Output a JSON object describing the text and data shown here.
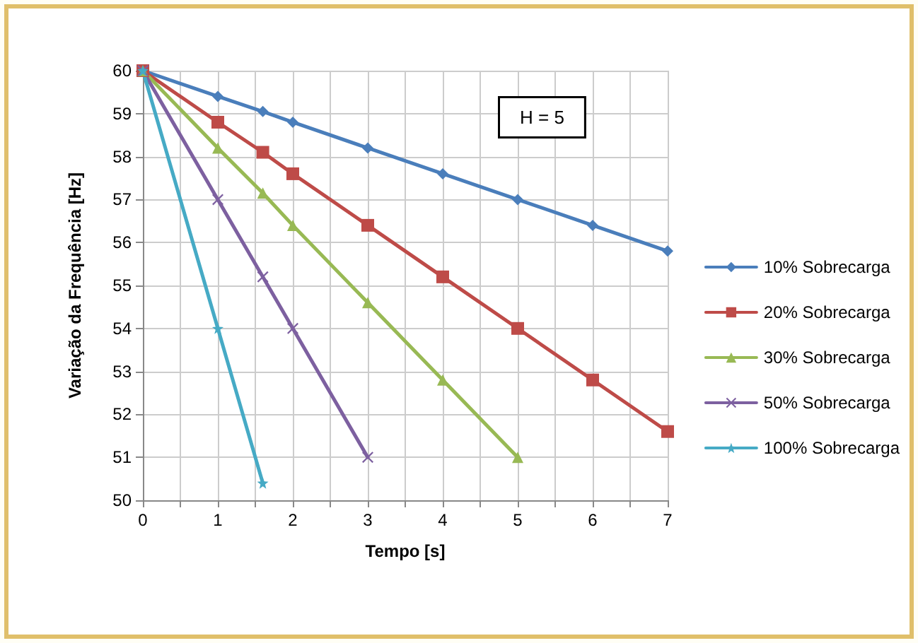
{
  "chart_data": {
    "type": "line",
    "xlabel": "Tempo [s]",
    "ylabel": "Variação da Frequência [Hz]",
    "annotations": [
      "H = 5"
    ],
    "xlim": [
      0,
      7
    ],
    "xticks": [
      0,
      {
        "value": 0.5,
        "label": null
      },
      1,
      {
        "value": 1.5,
        "label": null
      },
      2,
      {
        "value": 2.5,
        "label": null
      },
      3,
      {
        "value": 3.5,
        "label": null
      },
      4,
      {
        "value": 4.5,
        "label": null
      },
      5,
      {
        "value": 5.5,
        "label": null
      },
      6,
      {
        "value": 6.5,
        "label": null
      },
      7
    ],
    "ylim": [
      50,
      60
    ],
    "yticks": [
      50,
      51,
      52,
      53,
      54,
      55,
      56,
      57,
      58,
      59,
      60
    ],
    "grid": true,
    "legend": "right",
    "line_style": "solid",
    "series": [
      {
        "name": "10% Sobrecarga",
        "color": "#4a7ebb",
        "marker": "diamond",
        "x": [
          0,
          1,
          1.6,
          2,
          3,
          4,
          5,
          6,
          7
        ],
        "values": [
          60,
          59.4,
          59.05,
          58.8,
          58.2,
          57.6,
          57,
          56.4,
          55.8
        ]
      },
      {
        "name": "20% Sobrecarga",
        "color": "#be4b48",
        "marker": "square",
        "x": [
          0,
          1,
          1.6,
          2,
          3,
          4,
          5,
          6,
          7
        ],
        "values": [
          60,
          58.8,
          58.1,
          57.6,
          56.4,
          55.2,
          54,
          52.8,
          51.6
        ]
      },
      {
        "name": "30% Sobrecarga",
        "color": "#98b954",
        "marker": "triangle",
        "x": [
          0,
          1,
          1.6,
          2,
          3,
          4,
          5
        ],
        "values": [
          60,
          58.2,
          57.15,
          56.4,
          54.6,
          52.8,
          51
        ]
      },
      {
        "name": "50% Sobrecarga",
        "color": "#7d60a0",
        "marker": "cross",
        "x": [
          0,
          1,
          1.6,
          2,
          3
        ],
        "values": [
          60,
          57,
          55.2,
          54,
          51
        ]
      },
      {
        "name": "100% Sobrecarga",
        "color": "#46aac5",
        "marker": "star",
        "x": [
          0,
          1,
          1.6
        ],
        "values": [
          60,
          54,
          50.4
        ]
      }
    ]
  }
}
